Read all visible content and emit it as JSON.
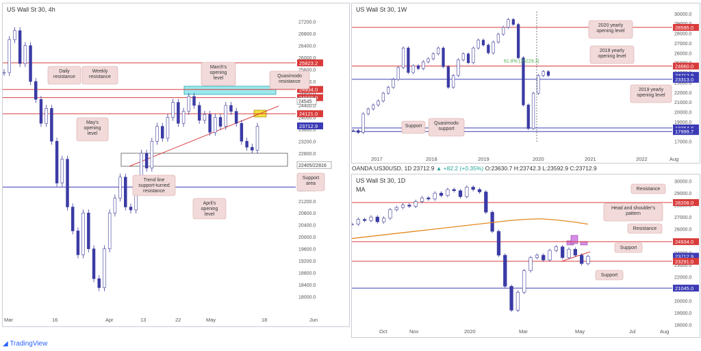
{
  "colors": {
    "candle_up": "#ffffff",
    "candle_down": "#3a3aa8",
    "candle_wick": "#3b3b9a",
    "red_level": "#d93b3b",
    "blue_level": "#3a3ab5",
    "ma_orange": "#e28a1d",
    "label_bg": "#f2dada",
    "label_border": "#d9a6a6",
    "cyan_zone": "#9be8ec",
    "yellow_box": "#f3e23a",
    "pink_box": "#d68de6",
    "green_text": "#4caf50"
  },
  "footer": {
    "brand": "TradingView"
  },
  "chart_data": [
    {
      "id": "h4",
      "type": "line",
      "title": "US Wall St 30, 4h",
      "ylim": [
        17600,
        27400
      ],
      "x_ticks": [
        "Mar",
        "16",
        "Apr",
        "13",
        "22",
        "May",
        "18",
        "Jun"
      ],
      "y_ticks": [
        "27200.0",
        "26800.0",
        "26400.0",
        "26000.0",
        "25600.0",
        "25200.0",
        "24800.0",
        "24400.0",
        "24000.0",
        "23600.0",
        "23200.0",
        "22800.0",
        "22400.0",
        "22000.0",
        "21600.0",
        "21200.0",
        "20800.0",
        "20400.0",
        "20000.0",
        "19600.0",
        "19200.0",
        "18800.0",
        "18400.0",
        "18000.0"
      ],
      "series": [
        {
          "values": [
            25500,
            26600,
            26900,
            25800,
            26400,
            25200,
            24600,
            23800,
            24300,
            23200,
            21800,
            22600,
            21000,
            20200,
            19400,
            20800,
            19600,
            18600,
            18300,
            19600,
            20800,
            21300,
            22000,
            21000,
            20900,
            21500,
            22800,
            22300,
            23200,
            23700,
            23300,
            24000,
            24500,
            23800,
            24200,
            24700,
            24400,
            23900,
            24100,
            23500,
            24000,
            23700,
            24400,
            24200,
            23800,
            23200,
            23000,
            22900,
            23700
          ]
        }
      ],
      "levels": [
        {
          "value": 25823.2,
          "label": "25823.2",
          "color": "red"
        },
        {
          "value": 24934.0,
          "label": "24934.0",
          "color": "red"
        },
        {
          "value": 24660.0,
          "label": "24660.0",
          "color": "red"
        },
        {
          "value": 24121.0,
          "label": "24121.0",
          "color": "red"
        },
        {
          "value": 23712.9,
          "label": "23712.9",
          "color": "blue_tag"
        },
        {
          "value": 21668.0,
          "label": "21668.0",
          "color": "blue"
        }
      ],
      "value_tags": [
        {
          "value": 24545,
          "label": "24545"
        },
        {
          "value": 22405,
          "label": "22405/22816"
        }
      ],
      "annotations": [
        "Daily resistance",
        "Weekly resistance",
        "March's opening level",
        "Quasimodo resistance",
        "May's opening level",
        "Trend line support-turned resistance",
        "April's opening level",
        "Support area"
      ]
    },
    {
      "id": "w1",
      "type": "line",
      "title": "US Wall St 30, 1W",
      "ylim": [
        16900,
        30200
      ],
      "x_ticks": [
        "2017",
        "2018",
        "2019",
        "2020",
        "2021",
        "2022",
        "Aug"
      ],
      "y_ticks": [
        "30000.0",
        "29000.0",
        "28000.0",
        "27000.0",
        "26000.0",
        "25000.0",
        "24000.0",
        "23000.0",
        "22000.0",
        "21000.0",
        "20000.0",
        "19000.0",
        "18000.0",
        "17000.0"
      ],
      "series": [
        {
          "values": [
            18100,
            17900,
            19800,
            20300,
            20700,
            21100,
            21900,
            22500,
            23300,
            24500,
            26500,
            24000,
            24700,
            24400,
            25100,
            25400,
            25900,
            26500,
            24600,
            22500,
            23700,
            25300,
            25900,
            25000,
            26500,
            27300,
            26800,
            26000,
            27100,
            27900,
            28600,
            29400,
            28900,
            25500,
            20700,
            18300,
            21900,
            23700,
            24100,
            23700
          ]
        }
      ],
      "levels": [
        {
          "value": 28595.0,
          "label": "28595.0",
          "color": "red"
        },
        {
          "value": 24660.0,
          "label": "24660.0",
          "color": "red"
        },
        {
          "value": 23712.9,
          "label": "23712.9",
          "color": "blue_tag"
        },
        {
          "value": 23313.0,
          "label": "23313.0",
          "color": "blue"
        },
        {
          "value": 18364.8,
          "label": "18364.8",
          "color": "blue"
        },
        {
          "value": 17999.7,
          "label": "17999.7",
          "color": "blue"
        }
      ],
      "fib_label": "61.8% (25229.3)",
      "annotations": [
        "2020 yearly opening level",
        "2018 yearly opening level",
        "2019 yearly opening level",
        "Support",
        "Quasimodo support"
      ]
    },
    {
      "id": "d1",
      "type": "line",
      "title": "US Wall St 30, 1D",
      "subtitle": "MA",
      "header": {
        "symbol": "OANDA:US30USD, 1D",
        "price": "23712.9",
        "change": "▲ +82.2 (+0.35%)",
        "o": "O:23630.7",
        "h": "H:23742.3",
        "l": "L:23592.9",
        "c": "C:23712.9"
      },
      "ylim": [
        17500,
        30100
      ],
      "x_ticks": [
        "Oct",
        "Nov",
        "2020",
        "Mar",
        "May",
        "Jul",
        "Aug"
      ],
      "y_ticks": [
        "30000.0",
        "29000.0",
        "28000.0",
        "27000.0",
        "26000.0",
        "25000.0",
        "24000.0",
        "23000.0",
        "22000.0",
        "21000.0",
        "20000.0",
        "19000.0",
        "18000.0"
      ],
      "series": [
        {
          "name": "price",
          "values": [
            26400,
            26800,
            26700,
            27000,
            26600,
            26900,
            27600,
            27800,
            28000,
            27900,
            28300,
            28600,
            28500,
            29000,
            28800,
            29300,
            29200,
            28700,
            29500,
            29300,
            29100,
            27400,
            25800,
            23800,
            21200,
            19200,
            20700,
            22500,
            23600,
            23800,
            23400,
            24200,
            24500,
            23600,
            24300,
            23800,
            23100,
            23700
          ]
        },
        {
          "name": "ma",
          "values": [
            25200,
            25350,
            25500,
            25650,
            25800,
            25950,
            26100,
            26250,
            26400,
            26550,
            26700,
            26800,
            26850,
            26750,
            26600,
            26400
          ]
        }
      ],
      "levels": [
        {
          "value": 28208.0,
          "label": "28208.0",
          "color": "red"
        },
        {
          "value": 24934.0,
          "label": "24934.0",
          "color": "red"
        },
        {
          "value": 23712.9,
          "label": "23712.9",
          "color": "blue_tag"
        },
        {
          "value": 23291.0,
          "label": "23291.0",
          "color": "red"
        },
        {
          "value": 21045.0,
          "label": "21045.0",
          "color": "blue"
        }
      ],
      "annotations": [
        "Resistance",
        "Head and shoulder's pattern",
        "Resistance",
        "Support",
        "Support"
      ]
    }
  ]
}
